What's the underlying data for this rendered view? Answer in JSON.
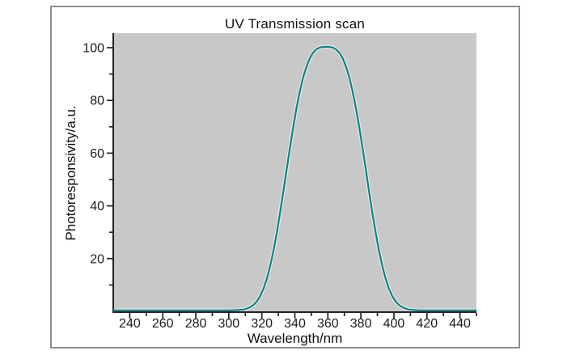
{
  "figure": {
    "background_color": "#ffffff",
    "frame_border_color": "#8d8d8d"
  },
  "chart_data": {
    "type": "line",
    "title": "UV Transmission scan",
    "xlabel": "Wavelength/nm",
    "ylabel": "Photoresponsivity/a.u.",
    "xlim": [
      230,
      450
    ],
    "ylim": [
      0,
      105
    ],
    "x_major_ticks": [
      240,
      260,
      280,
      300,
      320,
      340,
      360,
      380,
      400,
      420,
      440
    ],
    "x_minor_ticks": [
      250,
      270,
      290,
      310,
      330,
      350,
      370,
      390,
      410,
      430,
      450
    ],
    "y_major_ticks": [
      20,
      40,
      60,
      80,
      100
    ],
    "y_minor_ticks": [
      10,
      30,
      50,
      70,
      90
    ],
    "grid": false,
    "legend": "none",
    "plot_bg_color": "#c8c8c8",
    "line_color": "#0e8282",
    "line_halo_color": "#e7e7e7",
    "axis_color": "#222222",
    "tick_label_color": "#1a1a1a",
    "peak": {
      "x": 359,
      "y": 100
    },
    "points": [
      [
        230,
        0
      ],
      [
        240,
        0
      ],
      [
        250,
        0
      ],
      [
        260,
        0
      ],
      [
        270,
        0
      ],
      [
        280,
        0
      ],
      [
        290,
        0
      ],
      [
        300,
        0
      ],
      [
        305,
        0.1
      ],
      [
        307,
        0.2
      ],
      [
        309,
        0.3
      ],
      [
        311,
        0.7
      ],
      [
        313,
        1.2
      ],
      [
        315,
        2.1
      ],
      [
        317,
        3.4
      ],
      [
        319,
        5.4
      ],
      [
        321,
        8.2
      ],
      [
        323,
        11.9
      ],
      [
        325,
        16.7
      ],
      [
        327,
        22.5
      ],
      [
        329,
        29.2
      ],
      [
        331,
        36.8
      ],
      [
        333,
        44.9
      ],
      [
        335,
        53.3
      ],
      [
        337,
        61.6
      ],
      [
        339,
        69.5
      ],
      [
        341,
        76.7
      ],
      [
        343,
        83.0
      ],
      [
        345,
        88.3
      ],
      [
        347,
        92.4
      ],
      [
        349,
        95.6
      ],
      [
        351,
        97.7
      ],
      [
        353,
        99.0
      ],
      [
        355,
        99.7
      ],
      [
        357,
        99.9
      ],
      [
        359,
        100
      ],
      [
        361,
        99.9
      ],
      [
        363,
        99.7
      ],
      [
        365,
        99.0
      ],
      [
        367,
        97.7
      ],
      [
        369,
        95.6
      ],
      [
        371,
        92.4
      ],
      [
        373,
        88.3
      ],
      [
        375,
        83.0
      ],
      [
        377,
        76.7
      ],
      [
        379,
        69.5
      ],
      [
        381,
        61.6
      ],
      [
        383,
        53.3
      ],
      [
        385,
        44.9
      ],
      [
        387,
        36.8
      ],
      [
        389,
        29.2
      ],
      [
        391,
        22.5
      ],
      [
        393,
        16.7
      ],
      [
        395,
        11.9
      ],
      [
        397,
        8.2
      ],
      [
        399,
        5.4
      ],
      [
        401,
        3.4
      ],
      [
        403,
        2.1
      ],
      [
        405,
        1.2
      ],
      [
        407,
        0.7
      ],
      [
        409,
        0.3
      ],
      [
        411,
        0.2
      ],
      [
        413,
        0.1
      ],
      [
        415,
        0
      ],
      [
        420,
        0
      ],
      [
        430,
        0
      ],
      [
        440,
        0
      ],
      [
        450,
        0
      ]
    ]
  }
}
